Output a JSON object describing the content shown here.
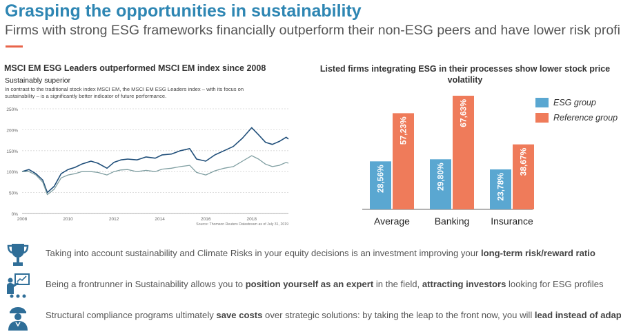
{
  "header": {
    "title": "Grasping the opportunities in sustainability",
    "subtitle": "Firms with strong ESG frameworks financially outperform their non-ESG peers and have lower risk profile"
  },
  "colors": {
    "title": "#2e86b3",
    "accent_rule": "#e8644a",
    "line_leaders": "#1f4e79",
    "line_index": "#7f9ea1",
    "bar_esg": "#5aa7d1",
    "bar_reference": "#ef7b5a",
    "icon": "#2f6e98"
  },
  "left_panel": {
    "heading": "MSCI EM ESG Leaders outperformed MSCI EM index since 2008",
    "chart_title": "Sustainably superior",
    "chart_description": "In contrast to the traditional stock index MSCI EM, the MSCI EM ESG Leaders index – with its focus on sustainability – is a significantly better indicator of future performance.",
    "source": "Source: Thomson Reuters Datastream as of July 31, 2019"
  },
  "right_panel": {
    "heading": "Listed firms integrating ESG in their processes show lower stock price volatility"
  },
  "chart_data": [
    {
      "type": "line",
      "title": "Sustainably superior",
      "x": [
        2008.0,
        2008.3,
        2008.6,
        2008.9,
        2009.1,
        2009.4,
        2009.7,
        2010.0,
        2010.3,
        2010.6,
        2011.0,
        2011.3,
        2011.7,
        2012.0,
        2012.3,
        2012.6,
        2013.0,
        2013.4,
        2013.8,
        2014.1,
        2014.5,
        2014.9,
        2015.3,
        2015.6,
        2016.0,
        2016.4,
        2016.8,
        2017.2,
        2017.6,
        2018.0,
        2018.3,
        2018.6,
        2018.9,
        2019.2,
        2019.5,
        2019.6
      ],
      "xticks": [
        "2008",
        "2010",
        "2012",
        "2014",
        "2016",
        "2018"
      ],
      "yticks": [
        "0%",
        "50%",
        "100%",
        "150%",
        "200%",
        "250%"
      ],
      "ylim": [
        0,
        250
      ],
      "series": [
        {
          "values": [
            100,
            105,
            95,
            80,
            50,
            65,
            95,
            105,
            110,
            118,
            125,
            120,
            108,
            122,
            128,
            130,
            128,
            135,
            132,
            140,
            142,
            150,
            155,
            130,
            125,
            140,
            150,
            160,
            180,
            205,
            188,
            170,
            165,
            172,
            182,
            178
          ]
        },
        {
          "values": [
            100,
            100,
            92,
            75,
            45,
            58,
            85,
            92,
            95,
            100,
            100,
            98,
            92,
            100,
            104,
            105,
            100,
            103,
            100,
            106,
            108,
            112,
            115,
            98,
            92,
            102,
            108,
            112,
            125,
            138,
            130,
            118,
            112,
            115,
            122,
            120
          ]
        }
      ]
    },
    {
      "type": "bar",
      "categories": [
        "Average",
        "Banking",
        "Insurance"
      ],
      "series": [
        {
          "name": "ESG group",
          "values": [
            28.56,
            29.8,
            23.78
          ],
          "labels": [
            "28,56%",
            "29,80%",
            "23,78%"
          ]
        },
        {
          "name": "Reference group",
          "values": [
            57.23,
            67.63,
            38.67
          ],
          "labels": [
            "57,23%",
            "67,63%",
            "38,67%"
          ]
        }
      ]
    }
  ],
  "bullets": [
    {
      "icon": "trophy-icon",
      "text_before": "Taking into account sustainability and Climate Risks in your equity decisions is an investment improving your ",
      "bold1": "long-term risk/reward ratio",
      "text_mid": "",
      "bold2": "",
      "text_after": ""
    },
    {
      "icon": "presenter-icon",
      "text_before": "Being a frontrunner in Sustainability allows you to ",
      "bold1": "position yourself as an expert",
      "text_mid": " in the field, ",
      "bold2": "attracting investors",
      "text_after": " looking for ESG profiles"
    },
    {
      "icon": "officer-icon",
      "text_before": "Structural compliance programs ultimately ",
      "bold1": "save costs",
      "text_mid": " over strategic solutions: by taking the leap to the front now, you will ",
      "bold2": "lead instead of adapt",
      "text_after": ""
    }
  ]
}
